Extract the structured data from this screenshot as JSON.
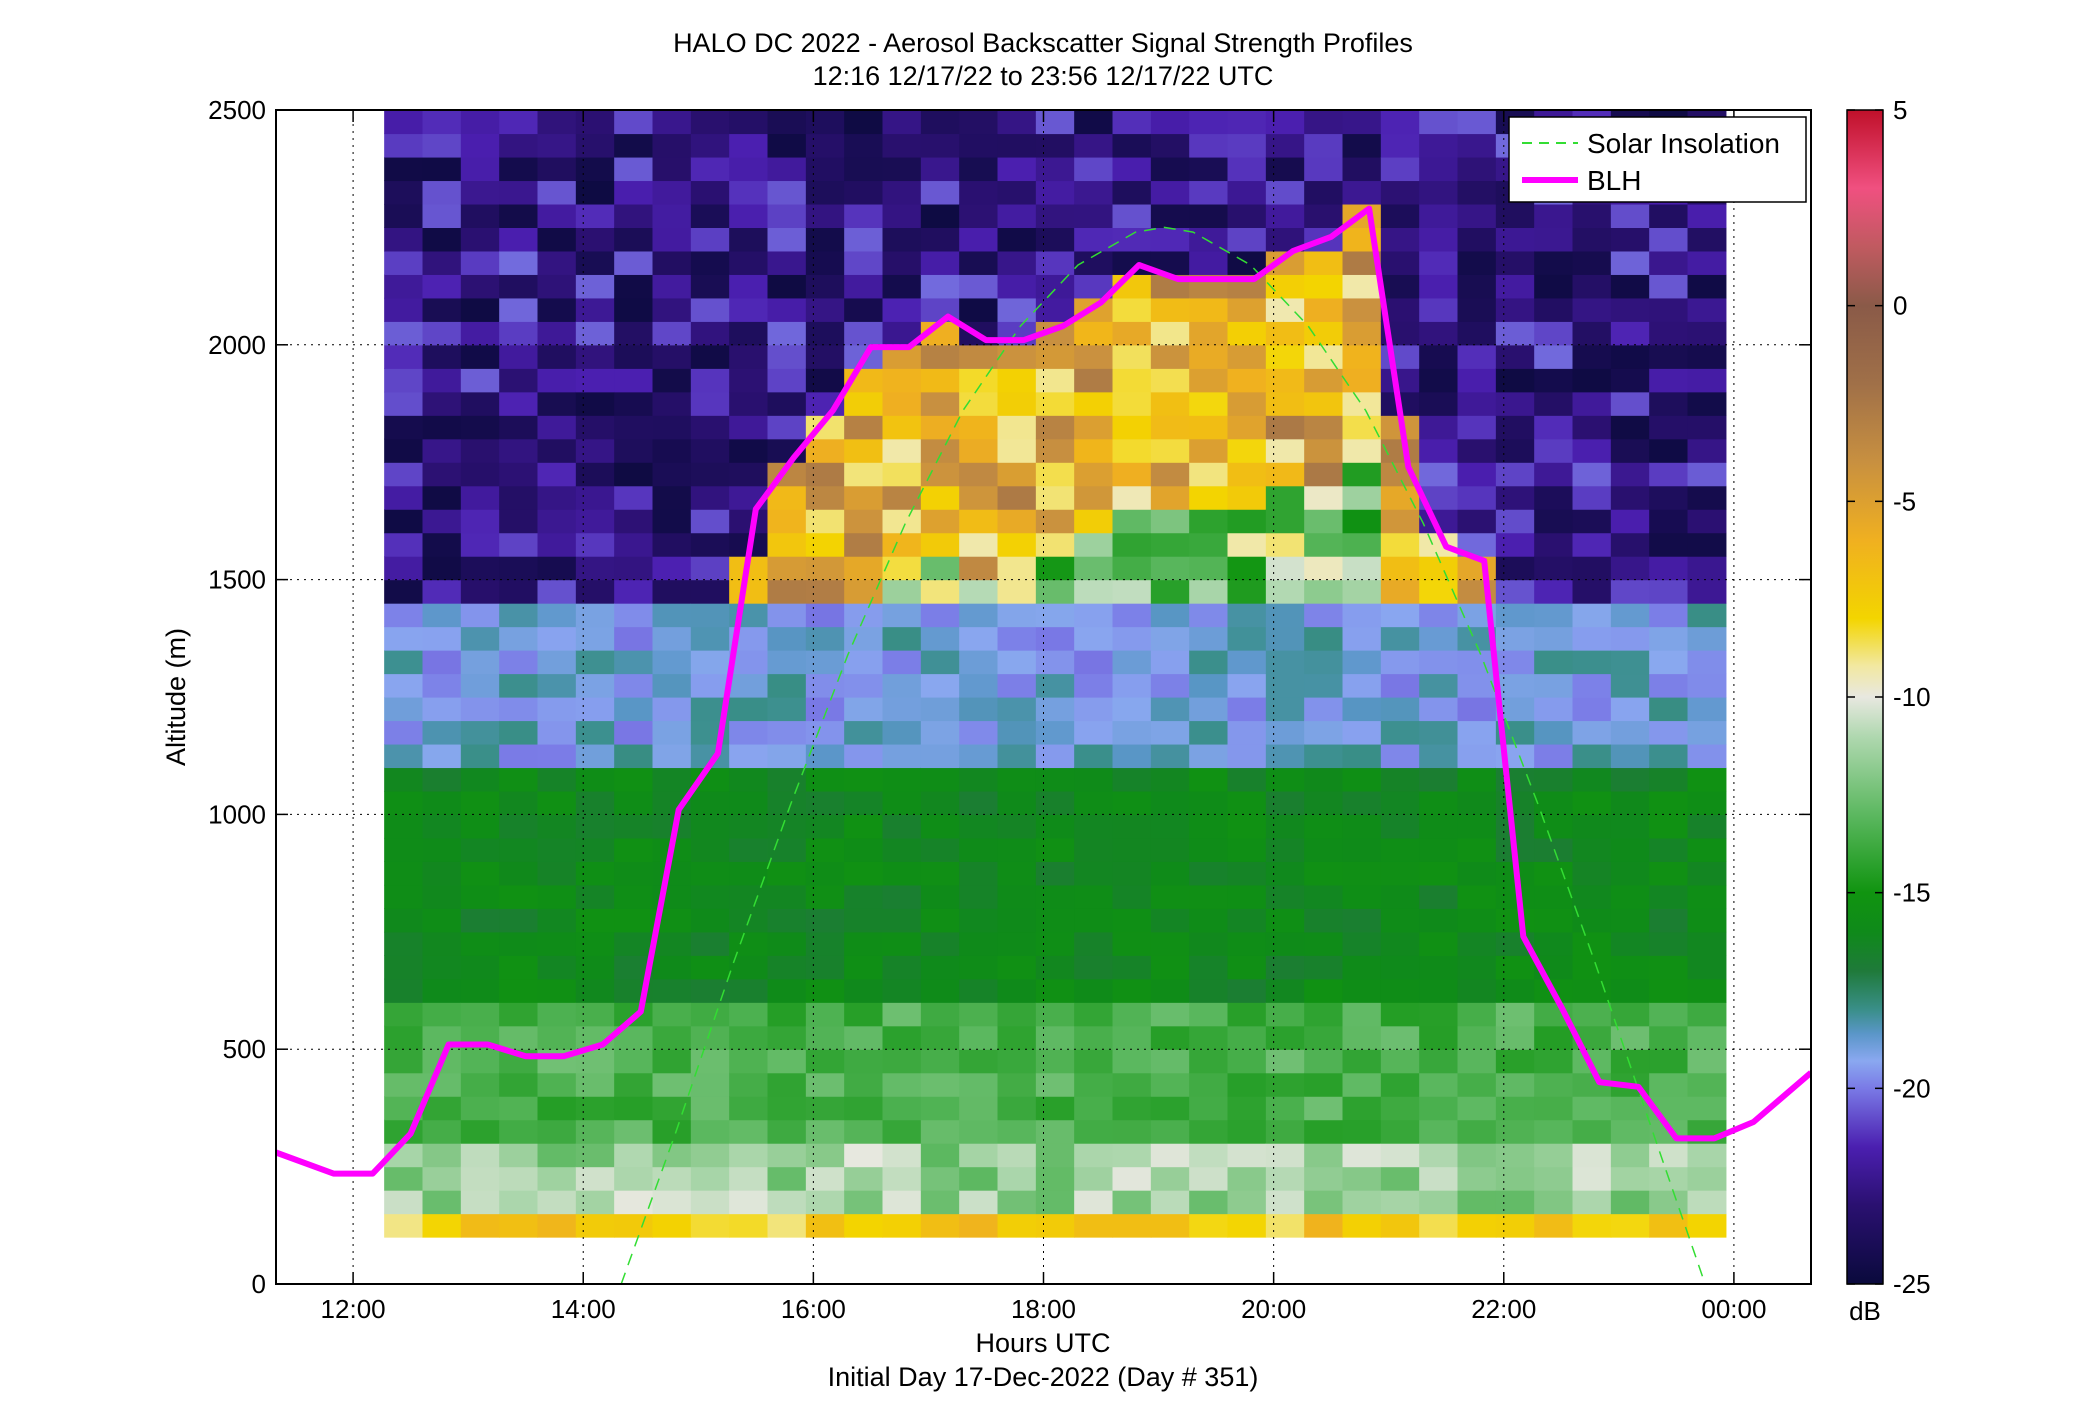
{
  "chart_data": {
    "type": "heatmap",
    "title": "HALO DC 2022 - Aerosol Backscatter Signal Strength Profiles",
    "subtitle": "12:16 12/17/22 to 23:56 12/17/22  UTC",
    "xlabel": "Hours UTC",
    "xlabel2": "Initial Day 17-Dec-2022 (Day # 351)",
    "ylabel": "Altitude (m)",
    "xlim": [
      11.33,
      24.67
    ],
    "ylim": [
      0,
      2500
    ],
    "x_ticks": [
      12,
      14,
      16,
      18,
      20,
      22,
      24
    ],
    "x_tick_labels": [
      "12:00",
      "14:00",
      "16:00",
      "18:00",
      "20:00",
      "22:00",
      "00:00"
    ],
    "y_ticks": [
      0,
      500,
      1000,
      1500,
      2000,
      2500
    ],
    "y_tick_labels": [
      "0",
      "500",
      "1000",
      "1500",
      "2000",
      "2500"
    ],
    "grid": "dotted",
    "legend_position": "top-right",
    "colorbar": {
      "label": "dB",
      "range": [
        -25,
        5
      ],
      "ticks": [
        5,
        0,
        -5,
        -10,
        -15,
        -20,
        -25
      ],
      "tick_labels": [
        "5",
        "0",
        "-5",
        "-10",
        "-15",
        "-20",
        "-25"
      ],
      "stops": [
        [
          -25,
          "#0a0a3c"
        ],
        [
          -23,
          "#2a1070"
        ],
        [
          -21.5,
          "#4b1fb0"
        ],
        [
          -20,
          "#7a7ae6"
        ],
        [
          -19.3,
          "#8aa8f0"
        ],
        [
          -18.6,
          "#5a96c8"
        ],
        [
          -18,
          "#3a8f8a"
        ],
        [
          -17,
          "#1f7a3a"
        ],
        [
          -16,
          "#0f8a1a"
        ],
        [
          -15,
          "#109410"
        ],
        [
          -13,
          "#5cb860"
        ],
        [
          -11,
          "#b0d8b0"
        ],
        [
          -10,
          "#e8e8e0"
        ],
        [
          -9.2,
          "#f2e8a0"
        ],
        [
          -8,
          "#f3d500"
        ],
        [
          -6,
          "#f0b020"
        ],
        [
          -4,
          "#c89040"
        ],
        [
          -2,
          "#a07048"
        ],
        [
          0,
          "#8a5a48"
        ],
        [
          1.5,
          "#c05a60"
        ],
        [
          3,
          "#f05080"
        ],
        [
          5,
          "#c0102a"
        ]
      ]
    },
    "heatmap": {
      "x_start": 12.27,
      "x_end": 23.93,
      "columns": 35,
      "y_start": 100,
      "y_bin": 50,
      "note_units": "dB"
    },
    "series": [
      {
        "name": "Solar Insolation",
        "style": "dashed",
        "color": "#33dd33",
        "x": [
          14.33,
          14.8,
          15.3,
          15.8,
          16.3,
          16.8,
          17.3,
          17.8,
          18.3,
          18.8,
          19.05,
          19.3,
          19.8,
          20.3,
          20.8,
          21.3,
          21.8,
          22.3,
          22.8,
          23.3,
          23.75
        ],
        "y": [
          0,
          320,
          680,
          1020,
          1340,
          1620,
          1860,
          2040,
          2170,
          2240,
          2250,
          2240,
          2170,
          2040,
          1860,
          1620,
          1340,
          1020,
          680,
          320,
          0
        ]
      },
      {
        "name": "BLH",
        "style": "solid",
        "color": "#ff00ff",
        "x": [
          11.33,
          11.83,
          12.17,
          12.5,
          12.83,
          13.17,
          13.5,
          13.83,
          14.17,
          14.5,
          14.83,
          15.17,
          15.5,
          15.83,
          16.17,
          16.5,
          16.83,
          17.17,
          17.5,
          17.83,
          18.17,
          18.5,
          18.83,
          19.17,
          19.5,
          19.83,
          20.17,
          20.5,
          20.83,
          21.17,
          21.5,
          21.83,
          22.17,
          22.5,
          22.83,
          23.17,
          23.5,
          23.83,
          24.17,
          24.67
        ],
        "y": [
          280,
          235,
          235,
          320,
          510,
          510,
          485,
          485,
          510,
          580,
          1010,
          1130,
          1650,
          1760,
          1860,
          1995,
          1995,
          2060,
          2010,
          2010,
          2040,
          2090,
          2170,
          2140,
          2140,
          2140,
          2200,
          2230,
          2290,
          1740,
          1570,
          1540,
          740,
          590,
          430,
          420,
          310,
          310,
          345,
          450
        ]
      }
    ]
  }
}
